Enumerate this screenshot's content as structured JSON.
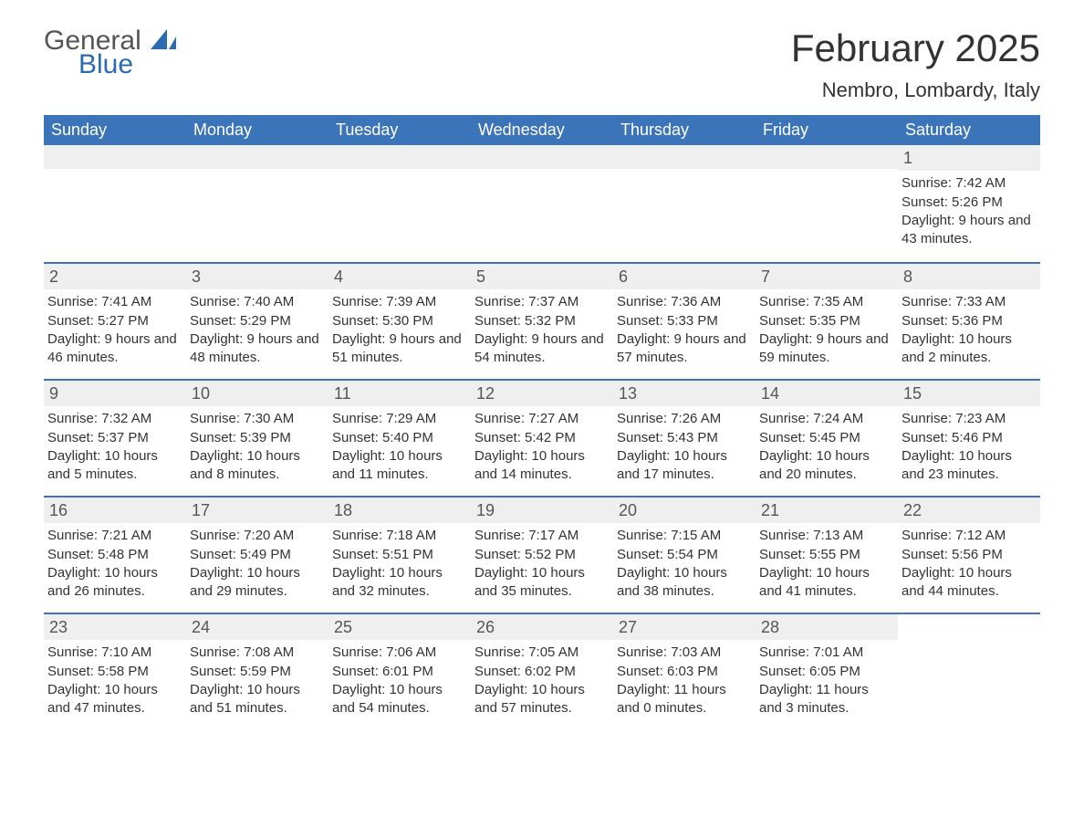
{
  "logo": {
    "word1": "General",
    "word2": "Blue",
    "brand_color": "#2b6cb0",
    "gray_color": "#555555"
  },
  "title": "February 2025",
  "location": "Nembro, Lombardy, Italy",
  "colors": {
    "header_bg": "#3b74b9",
    "header_text": "#ffffff",
    "daynum_bg": "#efefef",
    "text": "#333333",
    "rule": "#3b74b9",
    "page_bg": "#ffffff"
  },
  "day_headers": [
    "Sunday",
    "Monday",
    "Tuesday",
    "Wednesday",
    "Thursday",
    "Friday",
    "Saturday"
  ],
  "weeks": [
    [
      {
        "day": null
      },
      {
        "day": null
      },
      {
        "day": null
      },
      {
        "day": null
      },
      {
        "day": null
      },
      {
        "day": null
      },
      {
        "day": 1,
        "sunrise": "7:42 AM",
        "sunset": "5:26 PM",
        "daylight": "9 hours and 43 minutes."
      }
    ],
    [
      {
        "day": 2,
        "sunrise": "7:41 AM",
        "sunset": "5:27 PM",
        "daylight": "9 hours and 46 minutes."
      },
      {
        "day": 3,
        "sunrise": "7:40 AM",
        "sunset": "5:29 PM",
        "daylight": "9 hours and 48 minutes."
      },
      {
        "day": 4,
        "sunrise": "7:39 AM",
        "sunset": "5:30 PM",
        "daylight": "9 hours and 51 minutes."
      },
      {
        "day": 5,
        "sunrise": "7:37 AM",
        "sunset": "5:32 PM",
        "daylight": "9 hours and 54 minutes."
      },
      {
        "day": 6,
        "sunrise": "7:36 AM",
        "sunset": "5:33 PM",
        "daylight": "9 hours and 57 minutes."
      },
      {
        "day": 7,
        "sunrise": "7:35 AM",
        "sunset": "5:35 PM",
        "daylight": "9 hours and 59 minutes."
      },
      {
        "day": 8,
        "sunrise": "7:33 AM",
        "sunset": "5:36 PM",
        "daylight": "10 hours and 2 minutes."
      }
    ],
    [
      {
        "day": 9,
        "sunrise": "7:32 AM",
        "sunset": "5:37 PM",
        "daylight": "10 hours and 5 minutes."
      },
      {
        "day": 10,
        "sunrise": "7:30 AM",
        "sunset": "5:39 PM",
        "daylight": "10 hours and 8 minutes."
      },
      {
        "day": 11,
        "sunrise": "7:29 AM",
        "sunset": "5:40 PM",
        "daylight": "10 hours and 11 minutes."
      },
      {
        "day": 12,
        "sunrise": "7:27 AM",
        "sunset": "5:42 PM",
        "daylight": "10 hours and 14 minutes."
      },
      {
        "day": 13,
        "sunrise": "7:26 AM",
        "sunset": "5:43 PM",
        "daylight": "10 hours and 17 minutes."
      },
      {
        "day": 14,
        "sunrise": "7:24 AM",
        "sunset": "5:45 PM",
        "daylight": "10 hours and 20 minutes."
      },
      {
        "day": 15,
        "sunrise": "7:23 AM",
        "sunset": "5:46 PM",
        "daylight": "10 hours and 23 minutes."
      }
    ],
    [
      {
        "day": 16,
        "sunrise": "7:21 AM",
        "sunset": "5:48 PM",
        "daylight": "10 hours and 26 minutes."
      },
      {
        "day": 17,
        "sunrise": "7:20 AM",
        "sunset": "5:49 PM",
        "daylight": "10 hours and 29 minutes."
      },
      {
        "day": 18,
        "sunrise": "7:18 AM",
        "sunset": "5:51 PM",
        "daylight": "10 hours and 32 minutes."
      },
      {
        "day": 19,
        "sunrise": "7:17 AM",
        "sunset": "5:52 PM",
        "daylight": "10 hours and 35 minutes."
      },
      {
        "day": 20,
        "sunrise": "7:15 AM",
        "sunset": "5:54 PM",
        "daylight": "10 hours and 38 minutes."
      },
      {
        "day": 21,
        "sunrise": "7:13 AM",
        "sunset": "5:55 PM",
        "daylight": "10 hours and 41 minutes."
      },
      {
        "day": 22,
        "sunrise": "7:12 AM",
        "sunset": "5:56 PM",
        "daylight": "10 hours and 44 minutes."
      }
    ],
    [
      {
        "day": 23,
        "sunrise": "7:10 AM",
        "sunset": "5:58 PM",
        "daylight": "10 hours and 47 minutes."
      },
      {
        "day": 24,
        "sunrise": "7:08 AM",
        "sunset": "5:59 PM",
        "daylight": "10 hours and 51 minutes."
      },
      {
        "day": 25,
        "sunrise": "7:06 AM",
        "sunset": "6:01 PM",
        "daylight": "10 hours and 54 minutes."
      },
      {
        "day": 26,
        "sunrise": "7:05 AM",
        "sunset": "6:02 PM",
        "daylight": "10 hours and 57 minutes."
      },
      {
        "day": 27,
        "sunrise": "7:03 AM",
        "sunset": "6:03 PM",
        "daylight": "11 hours and 0 minutes."
      },
      {
        "day": 28,
        "sunrise": "7:01 AM",
        "sunset": "6:05 PM",
        "daylight": "11 hours and 3 minutes."
      },
      {
        "day": null
      }
    ]
  ],
  "labels": {
    "sunrise_prefix": "Sunrise: ",
    "sunset_prefix": "Sunset: ",
    "daylight_prefix": "Daylight: "
  }
}
